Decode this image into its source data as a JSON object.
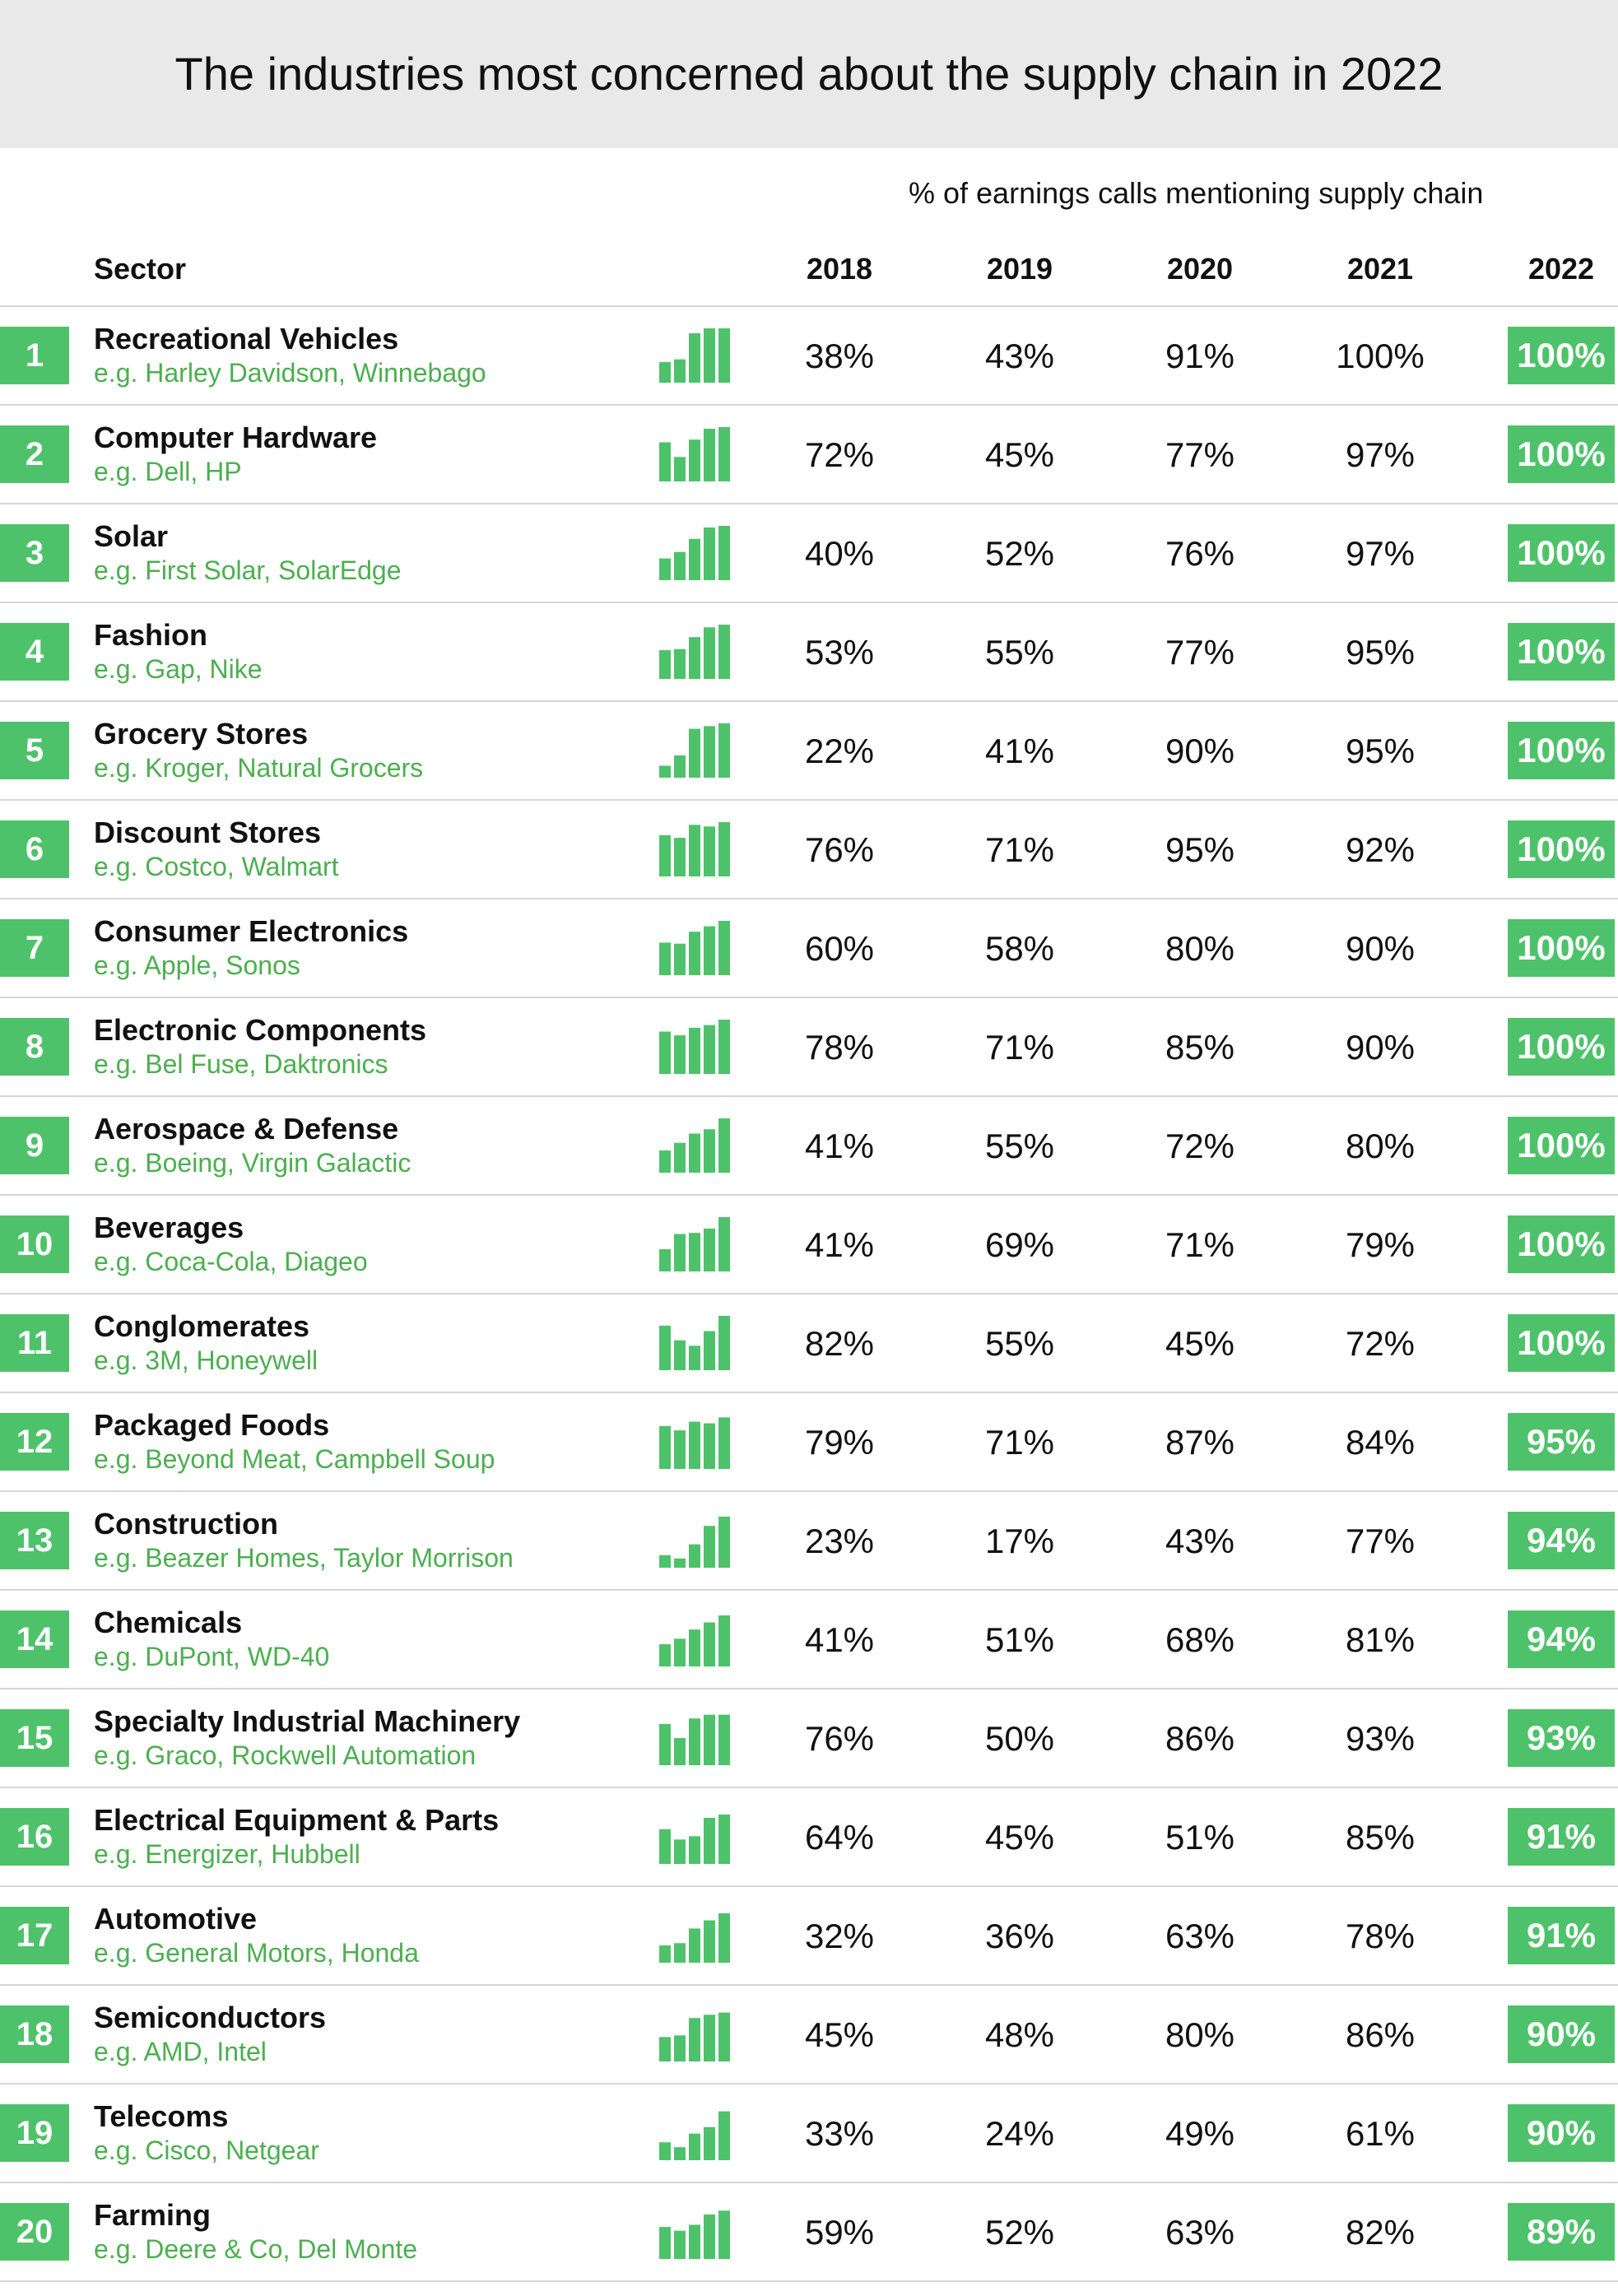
{
  "chart_data": {
    "type": "table",
    "title": "The industries most concerned about the supply chain in 2022",
    "subtitle": "% of earnings calls mentioning supply chain",
    "sector_header": "Sector",
    "years": [
      "2018",
      "2019",
      "2020",
      "2021",
      "2022"
    ],
    "accent_color": "#4ec26a",
    "rows": [
      {
        "rank": "1",
        "sector": "Recreational Vehicles",
        "examples": "e.g. Harley Davidson, Winnebago",
        "values": [
          38,
          43,
          91,
          100,
          100
        ]
      },
      {
        "rank": "2",
        "sector": "Computer Hardware",
        "examples": "e.g. Dell, HP",
        "values": [
          72,
          45,
          77,
          97,
          100
        ]
      },
      {
        "rank": "3",
        "sector": "Solar",
        "examples": "e.g. First Solar, SolarEdge",
        "values": [
          40,
          52,
          76,
          97,
          100
        ]
      },
      {
        "rank": "4",
        "sector": "Fashion",
        "examples": "e.g. Gap, Nike",
        "values": [
          53,
          55,
          77,
          95,
          100
        ]
      },
      {
        "rank": "5",
        "sector": "Grocery Stores",
        "examples": "e.g. Kroger, Natural Grocers",
        "values": [
          22,
          41,
          90,
          95,
          100
        ]
      },
      {
        "rank": "6",
        "sector": "Discount Stores",
        "examples": "e.g. Costco, Walmart",
        "values": [
          76,
          71,
          95,
          92,
          100
        ]
      },
      {
        "rank": "7",
        "sector": "Consumer Electronics",
        "examples": "e.g. Apple, Sonos",
        "values": [
          60,
          58,
          80,
          90,
          100
        ]
      },
      {
        "rank": "8",
        "sector": "Electronic Components",
        "examples": "e.g. Bel Fuse, Daktronics",
        "values": [
          78,
          71,
          85,
          90,
          100
        ]
      },
      {
        "rank": "9",
        "sector": "Aerospace & Defense",
        "examples": "e.g. Boeing, Virgin Galactic",
        "values": [
          41,
          55,
          72,
          80,
          100
        ]
      },
      {
        "rank": "10",
        "sector": "Beverages",
        "examples": "e.g. Coca-Cola, Diageo",
        "values": [
          41,
          69,
          71,
          79,
          100
        ]
      },
      {
        "rank": "11",
        "sector": "Conglomerates",
        "examples": "e.g. 3M, Honeywell",
        "values": [
          82,
          55,
          45,
          72,
          100
        ]
      },
      {
        "rank": "12",
        "sector": "Packaged Foods",
        "examples": "e.g. Beyond Meat, Campbell Soup",
        "values": [
          79,
          71,
          87,
          84,
          95
        ]
      },
      {
        "rank": "13",
        "sector": "Construction",
        "examples": "e.g. Beazer Homes, Taylor Morrison",
        "values": [
          23,
          17,
          43,
          77,
          94
        ]
      },
      {
        "rank": "14",
        "sector": "Chemicals",
        "examples": "e.g. DuPont, WD-40",
        "values": [
          41,
          51,
          68,
          81,
          94
        ]
      },
      {
        "rank": "15",
        "sector": "Specialty Industrial Machinery",
        "examples": "e.g. Graco, Rockwell Automation",
        "values": [
          76,
          50,
          86,
          93,
          93
        ]
      },
      {
        "rank": "16",
        "sector": "Electrical Equipment & Parts",
        "examples": "e.g. Energizer, Hubbell",
        "values": [
          64,
          45,
          51,
          85,
          91
        ]
      },
      {
        "rank": "17",
        "sector": "Automotive",
        "examples": "e.g. General Motors, Honda",
        "values": [
          32,
          36,
          63,
          78,
          91
        ]
      },
      {
        "rank": "18",
        "sector": "Semiconductors",
        "examples": "e.g. AMD, Intel",
        "values": [
          45,
          48,
          80,
          86,
          90
        ]
      },
      {
        "rank": "19",
        "sector": "Telecoms",
        "examples": "e.g. Cisco, Netgear",
        "values": [
          33,
          24,
          49,
          61,
          90
        ]
      },
      {
        "rank": "20",
        "sector": "Farming",
        "examples": "e.g. Deere & Co, Del Monte",
        "values": [
          59,
          52,
          63,
          82,
          89
        ]
      }
    ]
  }
}
